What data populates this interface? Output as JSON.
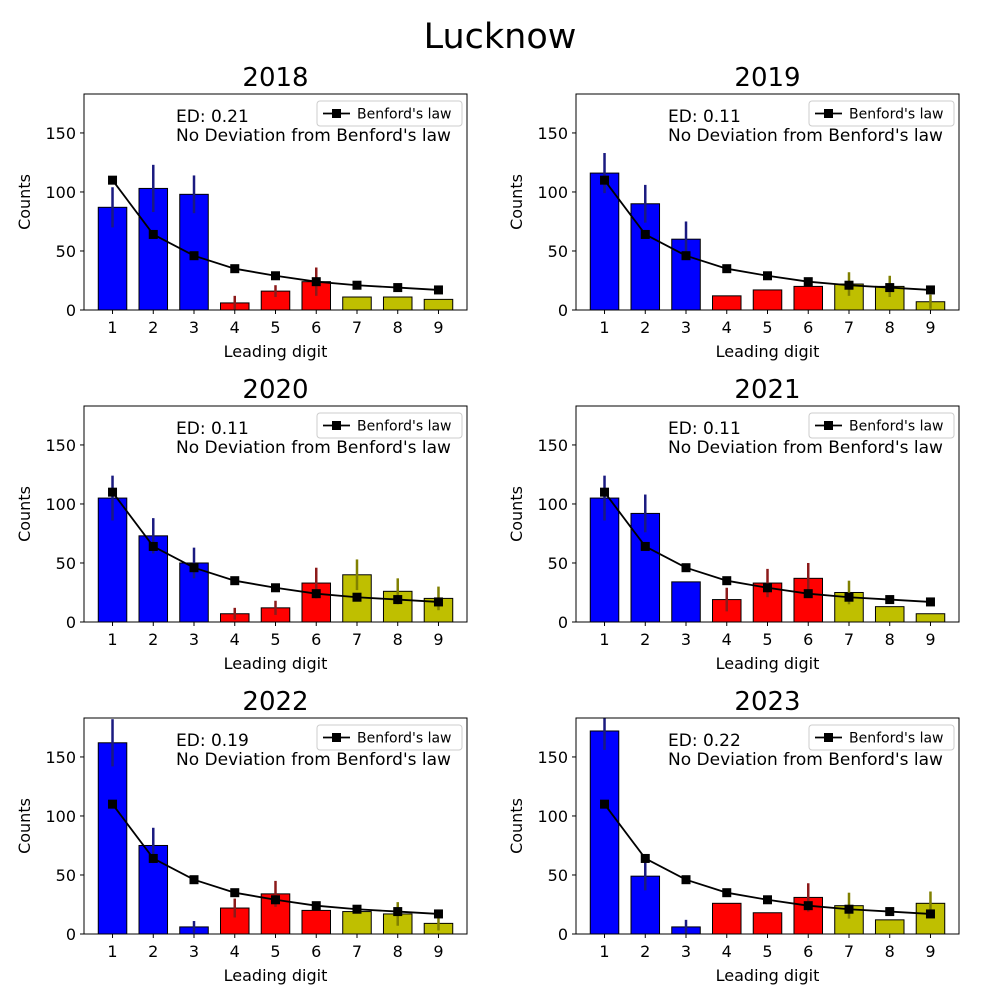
{
  "figure_title": "Lucknow",
  "chart_data": [
    {
      "type": "bar",
      "title": "2018",
      "xlabel": "Leading digit",
      "ylabel": "Counts",
      "categories": [
        "1",
        "2",
        "3",
        "4",
        "5",
        "6",
        "7",
        "8",
        "9"
      ],
      "ylim": [
        0,
        183
      ],
      "yticks": [
        0,
        50,
        100,
        150
      ],
      "values": [
        87,
        103,
        98,
        6,
        16,
        24,
        11,
        11,
        9
      ],
      "errors": [
        17,
        20,
        16,
        6,
        5,
        12,
        0,
        0,
        0
      ],
      "bar_colors": [
        "#0000ff",
        "#0000ff",
        "#0000ff",
        "#ff0000",
        "#ff0000",
        "#ff0000",
        "#bfbf00",
        "#bfbf00",
        "#bfbf00"
      ],
      "benford": [
        110,
        64,
        46,
        35,
        29,
        24,
        21,
        19,
        17
      ],
      "legend": "Benford's law",
      "legend_position": "top-right",
      "annotation_ed": "ED: 0.21",
      "annotation_text": "No Deviation from Benford's law"
    },
    {
      "type": "bar",
      "title": "2019",
      "xlabel": "Leading digit",
      "ylabel": "Counts",
      "categories": [
        "1",
        "2",
        "3",
        "4",
        "5",
        "6",
        "7",
        "8",
        "9"
      ],
      "ylim": [
        0,
        183
      ],
      "yticks": [
        0,
        50,
        100,
        150
      ],
      "values": [
        116,
        90,
        60,
        12,
        17,
        20,
        22,
        20,
        7
      ],
      "errors": [
        17,
        16,
        15,
        0,
        0,
        0,
        10,
        9,
        6
      ],
      "bar_colors": [
        "#0000ff",
        "#0000ff",
        "#0000ff",
        "#ff0000",
        "#ff0000",
        "#ff0000",
        "#bfbf00",
        "#bfbf00",
        "#bfbf00"
      ],
      "benford": [
        110,
        64,
        46,
        35,
        29,
        24,
        21,
        19,
        17
      ],
      "legend": "Benford's law",
      "legend_position": "top-right",
      "annotation_ed": "ED: 0.11",
      "annotation_text": "No Deviation from Benford's law"
    },
    {
      "type": "bar",
      "title": "2020",
      "xlabel": "Leading digit",
      "ylabel": "Counts",
      "categories": [
        "1",
        "2",
        "3",
        "4",
        "5",
        "6",
        "7",
        "8",
        "9"
      ],
      "ylim": [
        0,
        183
      ],
      "yticks": [
        0,
        50,
        100,
        150
      ],
      "values": [
        105,
        73,
        50,
        7,
        12,
        33,
        40,
        26,
        20
      ],
      "errors": [
        19,
        15,
        13,
        5,
        6,
        13,
        13,
        11,
        10
      ],
      "bar_colors": [
        "#0000ff",
        "#0000ff",
        "#0000ff",
        "#ff0000",
        "#ff0000",
        "#ff0000",
        "#bfbf00",
        "#bfbf00",
        "#bfbf00"
      ],
      "benford": [
        110,
        64,
        46,
        35,
        29,
        24,
        21,
        19,
        17
      ],
      "legend": "Benford's law",
      "legend_position": "top-right",
      "annotation_ed": "ED: 0.11",
      "annotation_text": "No Deviation from Benford's law"
    },
    {
      "type": "bar",
      "title": "2021",
      "xlabel": "Leading digit",
      "ylabel": "Counts",
      "categories": [
        "1",
        "2",
        "3",
        "4",
        "5",
        "6",
        "7",
        "8",
        "9"
      ],
      "ylim": [
        0,
        183
      ],
      "yticks": [
        0,
        50,
        100,
        150
      ],
      "values": [
        105,
        92,
        34,
        19,
        33,
        37,
        25,
        13,
        7
      ],
      "errors": [
        19,
        16,
        0,
        10,
        12,
        13,
        10,
        0,
        0
      ],
      "bar_colors": [
        "#0000ff",
        "#0000ff",
        "#0000ff",
        "#ff0000",
        "#ff0000",
        "#ff0000",
        "#bfbf00",
        "#bfbf00",
        "#bfbf00"
      ],
      "benford": [
        110,
        64,
        46,
        35,
        29,
        24,
        21,
        19,
        17
      ],
      "legend": "Benford's law",
      "legend_position": "top-right",
      "annotation_ed": "ED: 0.11",
      "annotation_text": "No Deviation from Benford's law"
    },
    {
      "type": "bar",
      "title": "2022",
      "xlabel": "Leading digit",
      "ylabel": "Counts",
      "categories": [
        "1",
        "2",
        "3",
        "4",
        "5",
        "6",
        "7",
        "8",
        "9"
      ],
      "ylim": [
        0,
        183
      ],
      "yticks": [
        0,
        50,
        100,
        150
      ],
      "values": [
        162,
        75,
        6,
        22,
        34,
        20,
        19,
        17,
        9
      ],
      "errors": [
        20,
        15,
        5,
        8,
        11,
        0,
        0,
        10,
        6
      ],
      "bar_colors": [
        "#0000ff",
        "#0000ff",
        "#0000ff",
        "#ff0000",
        "#ff0000",
        "#ff0000",
        "#bfbf00",
        "#bfbf00",
        "#bfbf00"
      ],
      "benford": [
        110,
        64,
        46,
        35,
        29,
        24,
        21,
        19,
        17
      ],
      "legend": "Benford's law",
      "legend_position": "top-right",
      "annotation_ed": "ED: 0.19",
      "annotation_text": "No Deviation from Benford's law"
    },
    {
      "type": "bar",
      "title": "2023",
      "xlabel": "Leading digit",
      "ylabel": "Counts",
      "categories": [
        "1",
        "2",
        "3",
        "4",
        "5",
        "6",
        "7",
        "8",
        "9"
      ],
      "ylim": [
        0,
        183
      ],
      "yticks": [
        0,
        50,
        100,
        150
      ],
      "values": [
        172,
        49,
        6,
        26,
        18,
        31,
        24,
        12,
        26
      ],
      "errors": [
        16,
        12,
        6,
        0,
        0,
        12,
        11,
        0,
        10
      ],
      "bar_colors": [
        "#0000ff",
        "#0000ff",
        "#0000ff",
        "#ff0000",
        "#ff0000",
        "#ff0000",
        "#bfbf00",
        "#bfbf00",
        "#bfbf00"
      ],
      "benford": [
        110,
        64,
        46,
        35,
        29,
        24,
        21,
        19,
        17
      ],
      "legend": "Benford's law",
      "legend_position": "top-right",
      "annotation_ed": "ED: 0.22",
      "annotation_text": "No Deviation from Benford's law"
    }
  ]
}
